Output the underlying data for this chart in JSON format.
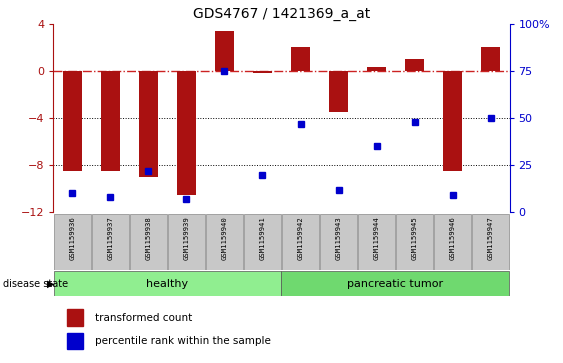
{
  "title": "GDS4767 / 1421369_a_at",
  "samples": [
    "GSM1159936",
    "GSM1159937",
    "GSM1159938",
    "GSM1159939",
    "GSM1159940",
    "GSM1159941",
    "GSM1159942",
    "GSM1159943",
    "GSM1159944",
    "GSM1159945",
    "GSM1159946",
    "GSM1159947"
  ],
  "transformed_count": [
    -8.5,
    -8.5,
    -9.0,
    -10.5,
    3.4,
    -0.2,
    2.0,
    -3.5,
    0.3,
    1.0,
    -8.5,
    2.0
  ],
  "percentile_rank": [
    10,
    8,
    22,
    7,
    75,
    20,
    47,
    12,
    35,
    48,
    9,
    50
  ],
  "ylim_left": [
    -12,
    4
  ],
  "ylim_right": [
    0,
    100
  ],
  "bar_color": "#AA1111",
  "dot_color": "#0000CC",
  "hline_color": "#CC2222",
  "grid_color": "#000000",
  "label_bg": "#C8C8C8",
  "healthy_color": "#90EE90",
  "tumor_color": "#6FD96F",
  "disease_label": "disease state",
  "legend_bar": "transformed count",
  "legend_dot": "percentile rank within the sample"
}
